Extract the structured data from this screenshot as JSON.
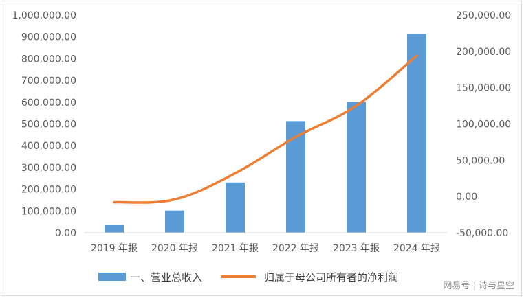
{
  "chart_data": {
    "type": "bar+line",
    "categories": [
      "2019 年报",
      "2020 年报",
      "2021 年报",
      "2022 年报",
      "2023 年报",
      "2024 年报"
    ],
    "series": [
      {
        "name": "一、营业总收入",
        "type": "bar",
        "axis": "left",
        "color": "#5b9bd5",
        "values": [
          36000,
          102000,
          231000,
          513000,
          601000,
          914000
        ]
      },
      {
        "name": "归属于母公司所有者的净利润",
        "type": "line",
        "axis": "right",
        "color": "#ed7d31",
        "values": [
          -8000,
          -4000,
          32000,
          82000,
          125000,
          194000
        ]
      }
    ],
    "left_axis": {
      "ylim": [
        0,
        1000000
      ],
      "ticks": [
        "0.00",
        "100,000.00",
        "200,000.00",
        "300,000.00",
        "400,000.00",
        "500,000.00",
        "600,000.00",
        "700,000.00",
        "800,000.00",
        "900,000.00",
        "1,000,000.00"
      ]
    },
    "right_axis": {
      "ylim": [
        -50000,
        250000
      ],
      "ticks": [
        "-50,000.00",
        "0.00",
        "50,000.00",
        "100,000.00",
        "150,000.00",
        "200,000.00",
        "250,000.00"
      ]
    },
    "grid": false,
    "legend_position": "bottom"
  },
  "watermark": "网易号 | 诗与星空"
}
